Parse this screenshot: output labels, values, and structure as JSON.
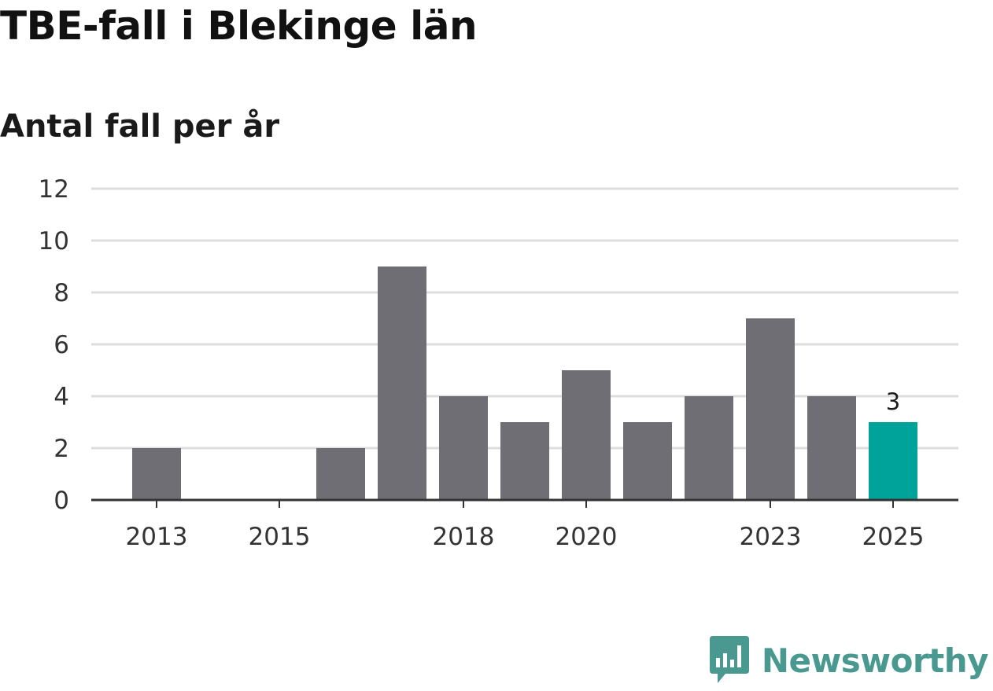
{
  "title": "TBE-fall i Blekinge län",
  "subtitle": "Antal fall per år",
  "brand": {
    "name": "Newsworthy",
    "icon": "newsworthy-logo-icon",
    "color": "#4a9990"
  },
  "colors": {
    "bar": "#6f6e74",
    "highlight": "#00a39a",
    "grid": "#dddddd",
    "axis": "#333333"
  },
  "chart_data": {
    "type": "bar",
    "title": "TBE-fall i Blekinge län",
    "subtitle": "Antal fall per år",
    "xlabel": "",
    "ylabel": "",
    "categories": [
      "2013",
      "2014",
      "2015",
      "2016",
      "2017",
      "2018",
      "2019",
      "2020",
      "2021",
      "2022",
      "2023",
      "2024",
      "2025"
    ],
    "values": [
      2,
      0,
      0,
      2,
      9,
      4,
      3,
      5,
      3,
      4,
      7,
      4,
      3
    ],
    "highlight_index": 12,
    "data_labels": [
      {
        "index": 12,
        "text": "3"
      }
    ],
    "x_tick_labels": [
      "2013",
      "2015",
      "2018",
      "2020",
      "2023",
      "2025"
    ],
    "y_ticks": [
      0,
      2,
      4,
      6,
      8,
      10,
      12
    ],
    "ylim": [
      0,
      12
    ],
    "grid": true
  }
}
